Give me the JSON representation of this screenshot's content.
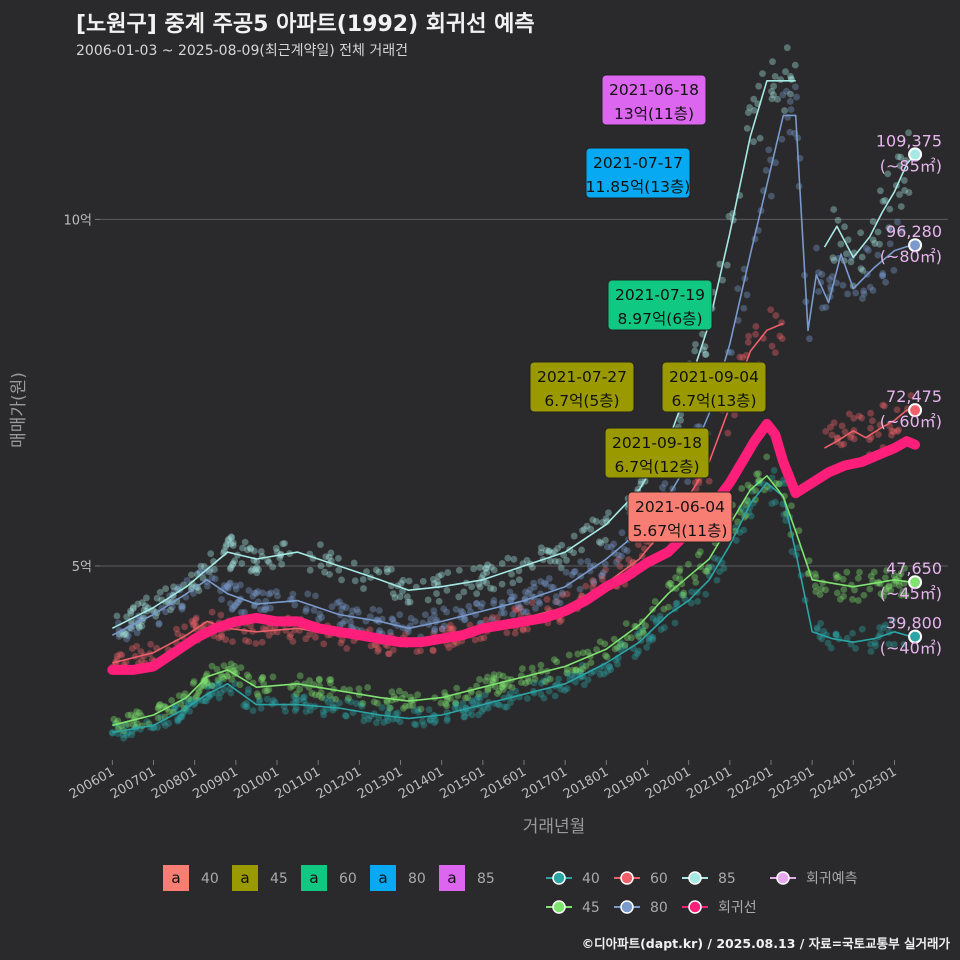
{
  "title": "[노원구] 중계 주공5 아파트(1992) 회귀선 예측",
  "subtitle": "2006-01-03 ~ 2025-08-09(최근계약일) 전체 거래건",
  "footer": "©디아파트(dapt.kr) / 2025.08.13 / 자료=국토교통부 실거래가",
  "chart_data": {
    "type": "line",
    "xlabel": "거래년월",
    "ylabel": "매매가(원)",
    "x_ticks": [
      "200601",
      "200701",
      "200801",
      "200901",
      "201001",
      "201101",
      "201201",
      "201301",
      "201401",
      "201501",
      "201601",
      "201701",
      "201801",
      "201901",
      "202001",
      "202101",
      "202201",
      "202301",
      "202401",
      "202501"
    ],
    "y_ticks": [
      {
        "value": 50000,
        "label": "5억"
      },
      {
        "value": 100000,
        "label": "10억"
      }
    ],
    "ylim": [
      22000,
      123000
    ],
    "grid": true,
    "series": [
      {
        "name": "40",
        "color": "#2aa5a5",
        "x": [
          2006.0,
          2007.0,
          2007.8,
          2008.3,
          2008.8,
          2009.5,
          2010.5,
          2011.5,
          2012.5,
          2013.2,
          2014.0,
          2015.0,
          2016.0,
          2017.0,
          2018.0,
          2018.8,
          2019.5,
          2020.0,
          2020.5,
          2021.0,
          2021.5,
          2021.9,
          2022.3,
          2022.6,
          2023.0,
          2023.5,
          2024.0,
          2024.5,
          2025.0,
          2025.4
        ],
        "y": [
          26000,
          27000,
          29500,
          31500,
          33000,
          30000,
          30000,
          29500,
          28500,
          28000,
          28500,
          30000,
          31500,
          33000,
          36000,
          39000,
          43000,
          45000,
          48000,
          53000,
          59000,
          62000,
          60000,
          52000,
          40500,
          39500,
          39000,
          39500,
          40500,
          39800
        ]
      },
      {
        "name": "45",
        "color": "#7ee36f",
        "x": [
          2006.0,
          2007.0,
          2007.8,
          2008.3,
          2008.8,
          2009.5,
          2010.5,
          2011.5,
          2012.5,
          2013.2,
          2014.0,
          2015.0,
          2016.0,
          2017.0,
          2018.0,
          2018.8,
          2019.5,
          2020.0,
          2020.5,
          2021.0,
          2021.5,
          2021.9,
          2022.3,
          2022.6,
          2023.0,
          2023.5,
          2024.0,
          2024.5,
          2025.0,
          2025.4
        ],
        "y": [
          27000,
          28500,
          31000,
          34000,
          35000,
          32500,
          33000,
          32000,
          31000,
          30500,
          31000,
          32500,
          34000,
          35500,
          38000,
          41500,
          46000,
          48500,
          51000,
          56000,
          61000,
          63000,
          60000,
          55000,
          48000,
          47500,
          47000,
          47500,
          48000,
          47650
        ]
      },
      {
        "name": "60",
        "color": "#f0606a",
        "x": [
          2006.0,
          2007.0,
          2007.8,
          2008.3,
          2008.8,
          2009.5,
          2010.5,
          2011.5,
          2012.5,
          2013.2,
          2014.0,
          2015.0,
          2016.0,
          2017.0,
          2018.0,
          2018.8,
          2019.5,
          2020.0,
          2020.5,
          2021.0,
          2021.5,
          2021.9,
          2022.3
        ],
        "y": [
          36000,
          37500,
          40000,
          42000,
          41000,
          40500,
          41000,
          40000,
          39000,
          38500,
          39500,
          41000,
          42500,
          44000,
          47500,
          51000,
          56000,
          60000,
          65000,
          73000,
          81000,
          84000,
          85000
        ]
      },
      {
        "name": "60-recent",
        "color": "#f0606a",
        "x": [
          2023.3,
          2023.6,
          2024.0,
          2024.3,
          2024.7,
          2025.0,
          2025.3,
          2025.5
        ],
        "y": [
          67000,
          68000,
          69500,
          68500,
          70000,
          71000,
          72500,
          72475
        ]
      },
      {
        "name": "80",
        "color": "#7a9acd",
        "x": [
          2006.0,
          2007.0,
          2007.8,
          2008.3,
          2008.8,
          2009.5,
          2010.5,
          2011.5,
          2012.5,
          2013.2,
          2014.0,
          2015.0,
          2016.0,
          2017.0,
          2018.0,
          2018.8,
          2019.5,
          2020.0,
          2020.5,
          2021.0,
          2021.5,
          2021.9,
          2022.3,
          2022.6,
          2022.9,
          2023.1,
          2023.4,
          2023.7,
          2024.0,
          2024.5,
          2025.0,
          2025.4
        ],
        "y": [
          40000,
          43000,
          46000,
          48000,
          46000,
          44500,
          45000,
          43000,
          42000,
          41000,
          42000,
          43500,
          45000,
          47000,
          51000,
          55000,
          60000,
          65000,
          72000,
          82000,
          95000,
          105000,
          115000,
          115000,
          84000,
          92000,
          88000,
          95000,
          90000,
          93000,
          95500,
          96280
        ]
      },
      {
        "name": "85",
        "color": "#a6e8e3",
        "x": [
          2006.0,
          2007.0,
          2007.8,
          2008.3,
          2008.8,
          2009.5,
          2010.5,
          2011.5,
          2012.5,
          2013.2,
          2014.0,
          2015.0,
          2016.0,
          2017.0,
          2018.0,
          2018.8,
          2019.5,
          2020.0,
          2020.5,
          2021.0,
          2021.5,
          2021.9,
          2022.3,
          2022.6
        ],
        "y": [
          41000,
          44000,
          47000,
          49500,
          52000,
          51000,
          52000,
          50000,
          48000,
          46500,
          47000,
          48000,
          50000,
          52000,
          56000,
          61000,
          68000,
          76000,
          85000,
          98000,
          112000,
          120000,
          120000,
          120000
        ]
      },
      {
        "name": "85-recent",
        "color": "#a6e8e3",
        "x": [
          2023.3,
          2023.6,
          2024.0,
          2024.4,
          2024.7,
          2025.0,
          2025.3,
          2025.5
        ],
        "y": [
          96000,
          99000,
          94500,
          97500,
          101000,
          104000,
          108000,
          109375
        ]
      },
      {
        "name": "회귀선",
        "color": "#ff1f7a",
        "x": [
          2006.0,
          2006.5,
          2007.0,
          2007.5,
          2008.0,
          2008.5,
          2009.0,
          2009.5,
          2010.0,
          2010.5,
          2011.0,
          2011.5,
          2012.0,
          2012.5,
          2013.0,
          2013.5,
          2014.0,
          2014.5,
          2015.0,
          2015.5,
          2016.0,
          2016.5,
          2017.0,
          2017.5,
          2018.0,
          2018.5,
          2019.0,
          2019.5,
          2020.0,
          2020.5,
          2021.0,
          2021.3,
          2021.6,
          2021.9,
          2022.1,
          2022.3,
          2022.6,
          2023.0,
          2023.4,
          2023.8,
          2024.2,
          2024.6,
          2025.0,
          2025.3,
          2025.5
        ],
        "y": [
          35000,
          35000,
          35500,
          37500,
          39500,
          41000,
          42000,
          42500,
          42000,
          42000,
          41000,
          40500,
          40000,
          39500,
          39000,
          39000,
          39500,
          40000,
          41000,
          41500,
          42000,
          42500,
          43500,
          45000,
          47000,
          48500,
          50500,
          52000,
          55000,
          58000,
          62000,
          65000,
          68000,
          70500,
          69000,
          65000,
          60500,
          62000,
          63500,
          64500,
          65000,
          66000,
          67000,
          68000,
          67500
        ]
      }
    ],
    "labels": [
      {
        "date": "2021-06-18",
        "price": "13억(11층)",
        "area": "85",
        "color": "#dd66f0"
      },
      {
        "date": "2021-07-17",
        "price": "11.85억(13층)",
        "area": "80",
        "color": "#07a9f2"
      },
      {
        "date": "2021-07-19",
        "price": "8.97억(6층)",
        "area": "60",
        "color": "#10c882"
      },
      {
        "date": "2021-07-27",
        "price": "6.7억(5층)",
        "area": "45",
        "color": "#9a9a00"
      },
      {
        "date": "2021-09-04",
        "price": "6.7억(13층)",
        "area": "45",
        "color": "#9a9a00"
      },
      {
        "date": "2021-09-18",
        "price": "6.7억(12층)",
        "area": "45",
        "color": "#9a9a00"
      },
      {
        "date": "2021-06-04",
        "price": "5.67억(11층)",
        "area": "40",
        "color": "#f87e74"
      }
    ],
    "end_labels": [
      {
        "value": "109,375",
        "area": "(~85㎡)",
        "y": 109375,
        "color": "#a6e8e3"
      },
      {
        "value": "96,280",
        "area": "(~80㎡)",
        "y": 96280,
        "color": "#7a9acd"
      },
      {
        "value": "72,475",
        "area": "(~60㎡)",
        "y": 72475,
        "color": "#f0606a"
      },
      {
        "value": "47,650",
        "area": "(~45㎡)",
        "y": 47650,
        "color": "#7ee36f"
      },
      {
        "value": "39,800",
        "area": "(~40㎡)",
        "y": 39800,
        "color": "#2aa5a5"
      }
    ],
    "legend": {
      "placement": "bottom",
      "label_boxes": [
        {
          "key": "a",
          "name": "40",
          "color": "#f87e74"
        },
        {
          "key": "a",
          "name": "45",
          "color": "#9a9a00"
        },
        {
          "key": "a",
          "name": "60",
          "color": "#10c882"
        },
        {
          "key": "a",
          "name": "80",
          "color": "#07a9f2"
        },
        {
          "key": "a",
          "name": "85",
          "color": "#dd66f0"
        }
      ],
      "lines": [
        {
          "name": "40",
          "color": "#2aa5a5"
        },
        {
          "name": "45",
          "color": "#7ee36f"
        },
        {
          "name": "60",
          "color": "#f0606a"
        },
        {
          "name": "80",
          "color": "#7a9acd"
        },
        {
          "name": "85",
          "color": "#a6e8e3"
        },
        {
          "name": "회귀선",
          "color": "#ff1f7a"
        },
        {
          "name": "회귀예측",
          "color": "#e8a8ee"
        }
      ]
    }
  }
}
